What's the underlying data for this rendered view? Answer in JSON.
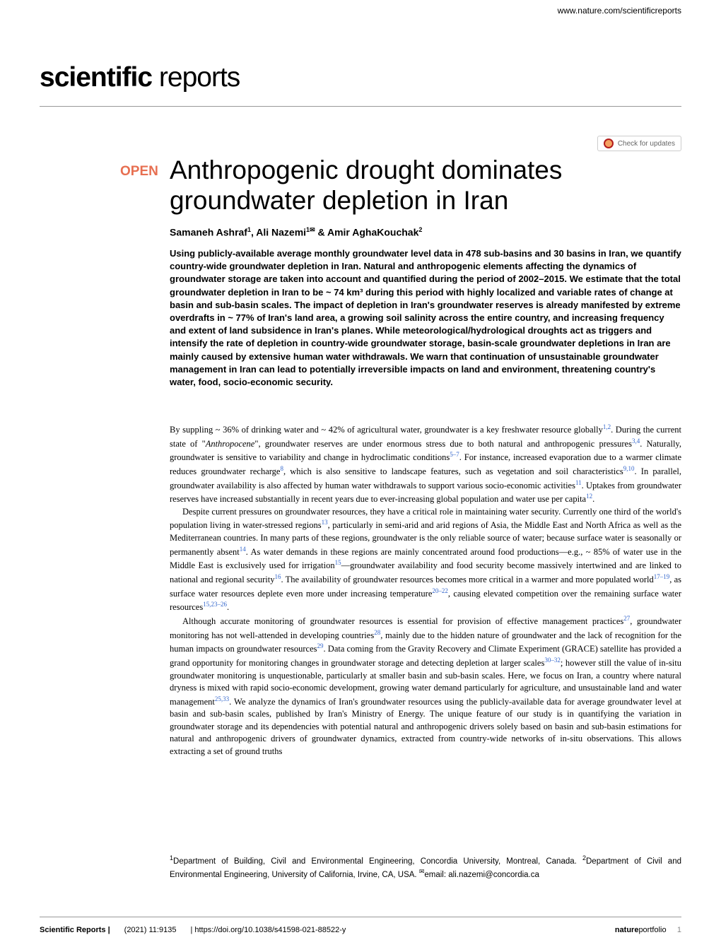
{
  "header": {
    "url": "www.nature.com/scientificreports",
    "journal_bold": "scientific",
    "journal_light": " reports",
    "check_updates": "Check for updates"
  },
  "article": {
    "open_label": "OPEN",
    "title": "Anthropogenic drought dominates groundwater depletion in Iran",
    "authors_html": "Samaneh Ashraf<span class='sup'>1</span>, Ali Nazemi<span class='sup'>1<span class='envelope'>✉</span></span> & Amir AghaKouchak<span class='sup'>2</span>"
  },
  "abstract": "Using publicly-available average monthly groundwater level data in 478 sub-basins and 30 basins in Iran, we quantify country-wide groundwater depletion in Iran. Natural and anthropogenic elements affecting the dynamics of groundwater storage are taken into account and quantified during the period of 2002–2015. We estimate that the total groundwater depletion in Iran to be ~ 74 km³ during this period with highly localized and variable rates of change at basin and sub-basin scales. The impact of depletion in Iran's groundwater reserves is already manifested by extreme overdrafts in ~ 77% of Iran's land area, a growing soil salinity across the entire country, and increasing frequency and extent of land subsidence in Iran's planes. While meteorological/hydrological droughts act as triggers and intensify the rate of depletion in country-wide groundwater storage, basin-scale groundwater depletions in Iran are mainly caused by extensive human water withdrawals. We warn that continuation of unsustainable groundwater management in Iran can lead to potentially irreversible impacts on land and environment, threatening country's water, food, socio-economic security.",
  "body": {
    "p1": "By suppling ~ 36% of drinking water and ~ 42% of agricultural water, groundwater is a key freshwater resource globally<span class='ref-link'>1,2</span>. During the current state of \"<i>Anthropocene</i>\", groundwater reserves are under enormous stress due to both natural and anthropogenic pressures<span class='ref-link'>3,4</span>. Naturally, groundwater is sensitive to variability and change in hydroclimatic conditions<span class='ref-link'>5–7</span>. For instance, increased evaporation due to a warmer climate reduces groundwater recharge<span class='ref-link'>8</span>, which is also sensitive to landscape features, such as vegetation and soil characteristics<span class='ref-link'>9,10</span>. In parallel, groundwater availability is also affected by human water withdrawals to support various socio-economic activities<span class='ref-link'>11</span>. Uptakes from groundwater reserves have increased substantially in recent years due to ever-increasing global population and water use per capita<span class='ref-link'>12</span>.",
    "p2": "Despite current pressures on groundwater resources, they have a critical role in maintaining water security. Currently one third of the world's population living in water-stressed regions<span class='ref-link'>13</span>, particularly in semi-arid and arid regions of Asia, the Middle East and North Africa as well as the Mediterranean countries. In many parts of these regions, groundwater is the only reliable source of water; because surface water is seasonally or permanently absent<span class='ref-link'>14</span>. As water demands in these regions are mainly concentrated around food productions—e.g., ~ 85% of water use in the Middle East is exclusively used for irrigation<span class='ref-link'>15</span>—groundwater availability and food security become massively intertwined and are linked to national and regional security<span class='ref-link'>16</span>. The availability of groundwater resources becomes more critical in a warmer and more populated world<span class='ref-link'>17–19</span>, as surface water resources deplete even more under increasing temperature<span class='ref-link'>20–22</span>, causing elevated competition over the remaining surface water resources<span class='ref-link'>15,23–26</span>.",
    "p3": "Although accurate monitoring of groundwater resources is essential for provision of effective management practices<span class='ref-link'>27</span>, groundwater monitoring has not well-attended in developing countries<span class='ref-link'>28</span>, mainly due to the hidden nature of groundwater and the lack of recognition for the human impacts on groundwater resources<span class='ref-link'>29</span>. Data coming from the Gravity Recovery and Climate Experiment (GRACE) satellite has provided a grand opportunity for monitoring changes in groundwater storage and detecting depletion at larger scales<span class='ref-link'>30–32</span>; however still the value of in-situ groundwater monitoring is unquestionable, particularly at smaller basin and sub-basin scales. Here, we focus on Iran, a country where natural dryness is mixed with rapid socio-economic development, growing water demand particularly for agriculture, and unsustainable land and water management<span class='ref-link'>25,33</span>. We analyze the dynamics of Iran's groundwater resources using the publicly-available data for average groundwater level at basin and sub-basin scales, published by Iran's Ministry of Energy. The unique feature of our study is in quantifying the variation in groundwater storage and its dependencies with potential natural and anthropogenic drivers solely based on basin and sub-basin estimations for natural and anthropogenic drivers of groundwater dynamics, extracted from country-wide networks of in-situ observations. This allows extracting a set of ground truths"
  },
  "affiliations": "<span class='sup'>1</span>Department of Building, Civil and Environmental Engineering, Concordia University, Montreal, Canada. <span class='sup'>2</span>Department of Civil and Environmental Engineering, University of California, Irvine, CA, USA. <span class='sup envelope'>✉</span>email: ali.nazemi@concordia.ca",
  "footer": {
    "journal": "Scientific Reports |",
    "citation": "(2021) 11:9135",
    "doi": "| https://doi.org/10.1038/s41598-021-88522-y",
    "publisher_bold": "nature",
    "publisher_light": "portfolio",
    "page": "1"
  }
}
